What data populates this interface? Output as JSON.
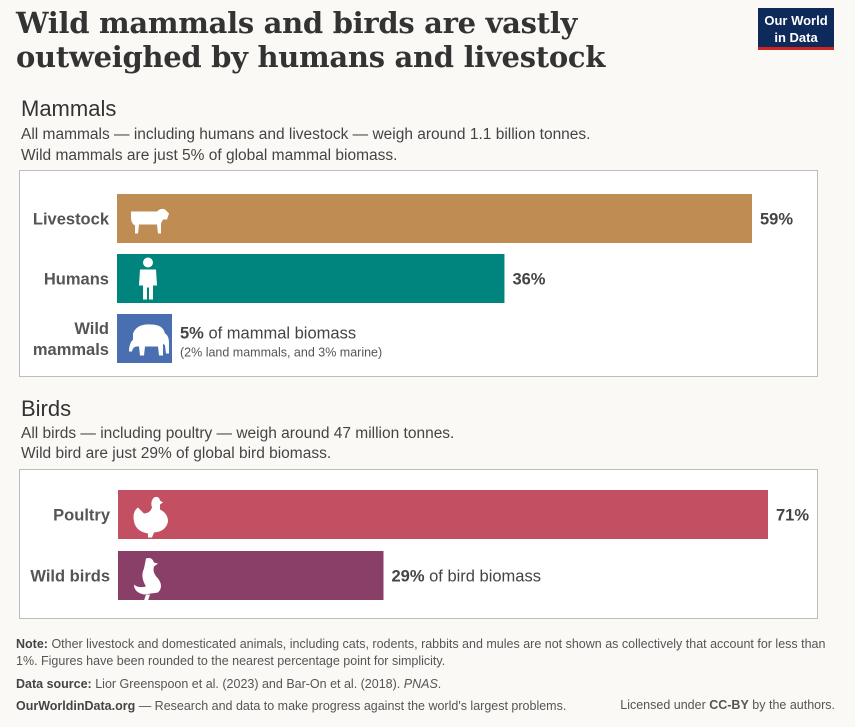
{
  "title": "Wild mammals and birds are vastly outweighed by humans and livestock",
  "logo": {
    "line1": "Our World",
    "line2": "in Data"
  },
  "colors": {
    "livestock": "#bf8c54",
    "humans": "#00847e",
    "wild_mammals": "#4a6fb0",
    "poultry": "#c24f62",
    "wild_birds": "#8a3f68"
  },
  "chart_data": [
    {
      "type": "bar",
      "title": "Mammals",
      "subtitle": [
        "All mammals — including humans and livestock — weigh around 1.1 billion tonnes.",
        "Wild mammals are just 5% of global mammal biomass."
      ],
      "categories": [
        "Livestock",
        "Humans",
        "Wild mammals"
      ],
      "values": [
        59,
        36,
        5
      ],
      "labels": [
        "59%",
        "36%",
        "5%"
      ],
      "label_suffix": [
        "",
        "",
        " of mammal biomass"
      ],
      "annotation": "(2% land mammals, and 3% marine)",
      "icons": [
        "cow-icon",
        "human-icon",
        "elephant-icon"
      ],
      "unit": "%"
    },
    {
      "type": "bar",
      "title": "Birds",
      "subtitle": [
        "All birds — including poultry — weigh around 47 million tonnes.",
        "Wild bird are just 29% of global bird biomass."
      ],
      "categories": [
        "Poultry",
        "Wild birds"
      ],
      "values": [
        71,
        29
      ],
      "labels": [
        "71%",
        "29%"
      ],
      "label_suffix": [
        "",
        " of bird biomass"
      ],
      "icons": [
        "chicken-icon",
        "bird-icon"
      ],
      "unit": "%"
    }
  ],
  "footer": {
    "note_label": "Note:",
    "note": "Other livestock and domesticated animals, including cats, rodents, rabbits and mules are not shown as collectively that account for less than 1%. Figures have been rounded to the nearest percentage point for simplicity.",
    "source_label": "Data source:",
    "source": "Lior Greenspoon et al. (2023) and Bar-On et al. (2018).",
    "source_journal": "PNAS",
    "site": "OurWorldinData.org",
    "tagline": "— Research and data to make progress against the world's largest problems.",
    "license_pre": "Licensed under",
    "license": "CC-BY",
    "license_post": "by the authors."
  }
}
